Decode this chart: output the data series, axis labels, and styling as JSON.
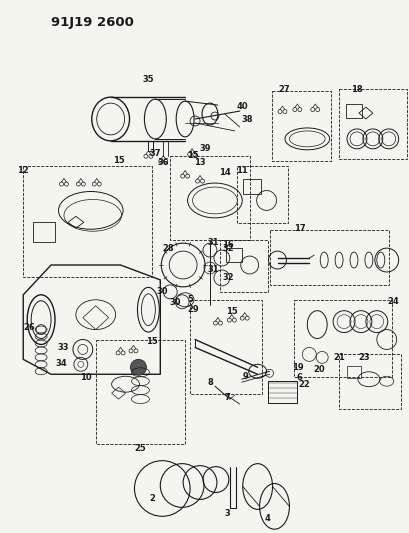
{
  "title": "91J19 2600",
  "bg_color": "#f5f5f0",
  "fig_width": 4.1,
  "fig_height": 5.33,
  "dpi": 100,
  "line_color": "#1a1a1a",
  "label_fontsize": 6.0
}
